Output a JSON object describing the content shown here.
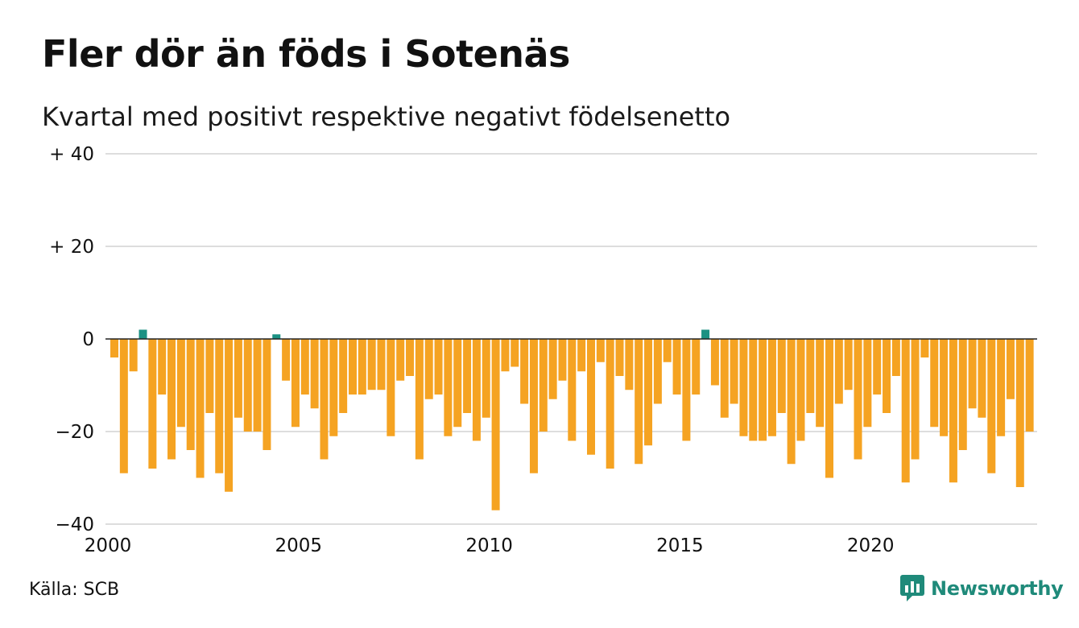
{
  "header": {
    "title": "Fler dör än föds i Sotenäs",
    "subtitle": "Kvartal med positivt respektive negativt födelsenetto"
  },
  "footer": {
    "source": "Källa: SCB",
    "brand": "Newsworthy",
    "brand_icon": "bar-chart-bubble-icon"
  },
  "colors": {
    "positive": "#1b9183",
    "negative": "#f5a322",
    "grid": "#dddddd",
    "zero_line": "#222222",
    "brand": "#1f8a7a"
  },
  "chart_data": {
    "type": "bar",
    "ylim": [
      -40,
      40
    ],
    "y_ticks": [
      40,
      20,
      0,
      -20,
      -40
    ],
    "y_tick_labels": [
      "+ 40",
      "+ 20",
      "0",
      "−20",
      "−40"
    ],
    "x_tick_labels": [
      "2000",
      "2005",
      "2010",
      "2015",
      "2020"
    ],
    "start_period": "2000 Q1",
    "interval": "quarter",
    "grid": true,
    "series": [
      {
        "values": [
          -4,
          -29,
          -7,
          2,
          -28,
          -12,
          -26,
          -19,
          -24,
          -30,
          -16,
          -29,
          -33,
          -17,
          -20,
          -20,
          -24,
          1,
          -9,
          -19,
          -12,
          -15,
          -26,
          -21,
          -16,
          -12,
          -12,
          -11,
          -11,
          -21,
          -9,
          -8,
          -26,
          -13,
          -12,
          -21,
          -19,
          -16,
          -22,
          -17,
          -37,
          -7,
          -6,
          -14,
          -29,
          -20,
          -13,
          -9,
          -22,
          -7,
          -25,
          -5,
          -28,
          -8,
          -11,
          -27,
          -23,
          -14,
          -5,
          -12,
          -22,
          -12,
          2,
          -10,
          -17,
          -14,
          -21,
          -22,
          -22,
          -21,
          -16,
          -27,
          -22,
          -16,
          -19,
          -30,
          -14,
          -11,
          -26,
          -19,
          -12,
          -16,
          -8,
          -31,
          -26,
          -4,
          -19,
          -21,
          -31,
          -24,
          -15,
          -17,
          -29,
          -21,
          -13,
          -32,
          -20
        ]
      }
    ]
  }
}
